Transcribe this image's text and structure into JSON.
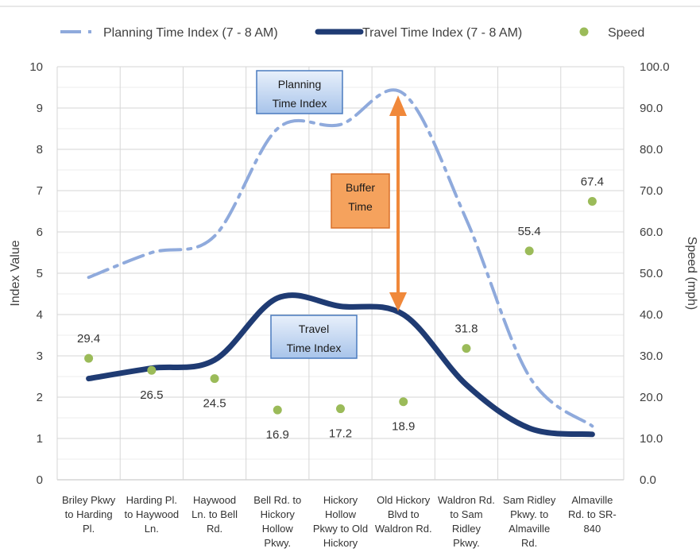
{
  "chart_data": {
    "type": "line",
    "categories": [
      [
        "Briley Pkwy",
        "to Harding",
        "Pl."
      ],
      [
        "Harding Pl.",
        "to Haywood",
        "Ln."
      ],
      [
        "Haywood",
        "Ln. to Bell",
        "Rd."
      ],
      [
        "Bell Rd. to",
        "Hickory",
        "Hollow",
        "Pkwy."
      ],
      [
        "Hickory",
        "Hollow",
        "Pkwy to Old",
        "Hickory"
      ],
      [
        "Old Hickory",
        "Blvd to",
        "Waldron Rd."
      ],
      [
        "Waldron Rd.",
        "to Sam",
        "Ridley",
        "Pkwy."
      ],
      [
        "Sam Ridley",
        "Pkwy. to",
        "Almaville",
        "Rd."
      ],
      [
        "Almaville",
        "Rd. to SR-",
        "840"
      ]
    ],
    "series": [
      {
        "name": "Planning Time Index (7 - 8 AM)",
        "axis": "left",
        "style": "dash-dot",
        "color": "#8faadc",
        "values": [
          4.9,
          5.5,
          5.9,
          8.5,
          8.6,
          9.35,
          6.3,
          2.5,
          1.3
        ]
      },
      {
        "name": "Travel Time Index (7 - 8 AM)",
        "axis": "left",
        "style": "solid",
        "color": "#1f3b73",
        "values": [
          2.45,
          2.7,
          2.9,
          4.4,
          4.2,
          4.0,
          2.3,
          1.25,
          1.1
        ]
      },
      {
        "name": "Speed",
        "axis": "right",
        "style": "marker",
        "color": "#9bbb59",
        "values": [
          29.4,
          26.5,
          24.5,
          16.9,
          17.2,
          18.9,
          31.8,
          55.4,
          67.4
        ]
      }
    ],
    "speed_labels": [
      "29.4",
      "26.5",
      "24.5",
      "16.9",
      "17.2",
      "18.9",
      "31.8",
      "55.4",
      "67.4"
    ],
    "ylabel": "Index Value",
    "y2label": "Speed (mph)",
    "ylim": [
      0,
      10
    ],
    "y2lim": [
      0,
      100
    ],
    "yticks": [
      "0",
      "1",
      "2",
      "3",
      "4",
      "5",
      "6",
      "7",
      "8",
      "9",
      "10"
    ],
    "y2ticks": [
      "0.0",
      "10.0",
      "20.0",
      "30.0",
      "40.0",
      "50.0",
      "60.0",
      "70.0",
      "80.0",
      "90.0",
      "100.0"
    ],
    "grid": true,
    "legend_position": "top",
    "annotations": {
      "planning": {
        "lines": [
          "Planning",
          "Time Index"
        ]
      },
      "travel": {
        "lines": [
          "Travel",
          "Time Index"
        ]
      },
      "buffer": {
        "lines": [
          "Buffer",
          "Time"
        ],
        "arrow_color": "#f0883a",
        "fill": "#f5a25d"
      }
    }
  }
}
